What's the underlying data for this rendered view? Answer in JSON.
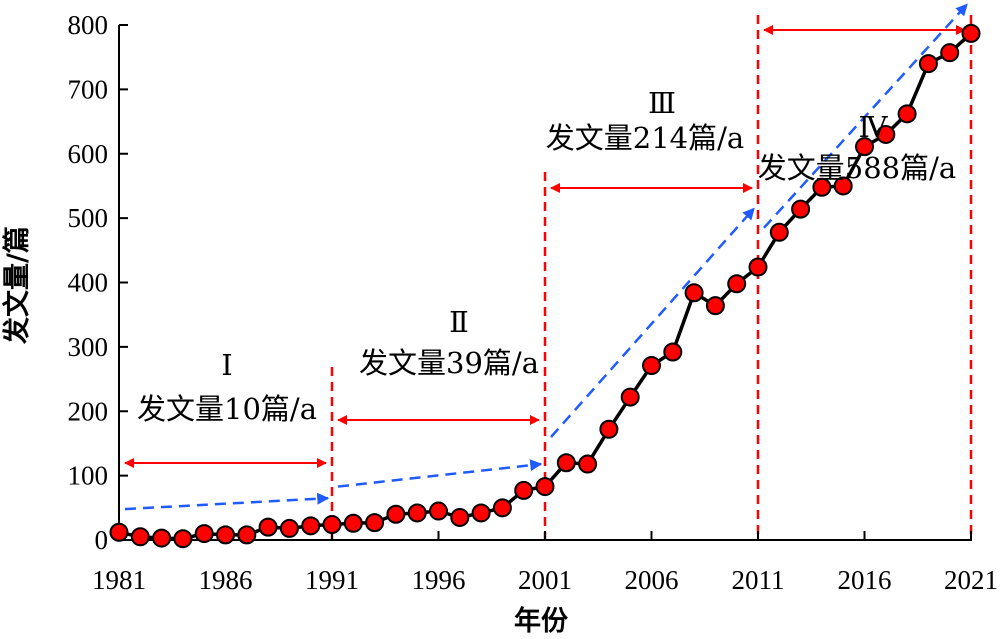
{
  "chart_data": {
    "type": "line",
    "title": "",
    "xlabel": "年份",
    "ylabel": "发文量/篇",
    "xlim": [
      1981,
      2021
    ],
    "ylim": [
      0,
      800
    ],
    "x_ticks": [
      1981,
      1986,
      1991,
      1996,
      2001,
      2006,
      2011,
      2016,
      2021
    ],
    "y_ticks": [
      0,
      100,
      200,
      300,
      400,
      500,
      600,
      700,
      800
    ],
    "grid": false,
    "legend": "none",
    "colors": {
      "line": "#000000",
      "marker": "#ff0000",
      "trend": "#1f5bff",
      "period": "#ff0000"
    },
    "series": [
      {
        "x": [
          1981,
          1982,
          1983,
          1984,
          1985,
          1986,
          1987,
          1988,
          1989,
          1990,
          1991,
          1992,
          1993,
          1994,
          1995,
          1996,
          1997,
          1998,
          1999,
          2000,
          2001,
          2002,
          2003,
          2004,
          2005,
          2006,
          2007,
          2008,
          2009,
          2010,
          2011,
          2012,
          2013,
          2014,
          2015,
          2016,
          2017,
          2018,
          2019,
          2020,
          2021
        ],
        "values": [
          12,
          5,
          3,
          2,
          10,
          8,
          8,
          20,
          18,
          22,
          24,
          26,
          27,
          40,
          42,
          45,
          35,
          42,
          50,
          77,
          83,
          120,
          118,
          172,
          222,
          271,
          292,
          384,
          364,
          398,
          424,
          478,
          514,
          548,
          550,
          611,
          630,
          662,
          740,
          757,
          787
        ]
      }
    ],
    "periods": [
      {
        "label": "Ⅰ",
        "rate": "发文量10篇/a",
        "start": 1981,
        "end": 1991
      },
      {
        "label": "Ⅱ",
        "rate": "发文量39篇/a",
        "start": 1991,
        "end": 2001
      },
      {
        "label": "Ⅲ",
        "rate": "发文量214篇/a",
        "start": 2001,
        "end": 2011
      },
      {
        "label": "Ⅳ",
        "rate": "发文量588篇/a",
        "start": 2011,
        "end": 2021
      }
    ],
    "trends": [
      {
        "from": [
          1981,
          48
        ],
        "to": [
          1991,
          65
        ]
      },
      {
        "from": [
          1991,
          83
        ],
        "to": [
          2001,
          118
        ]
      },
      {
        "from": [
          2001,
          160
        ],
        "to": [
          2011,
          515
        ]
      },
      {
        "from": [
          2011,
          485
        ],
        "to": [
          2021,
          832
        ]
      }
    ]
  }
}
